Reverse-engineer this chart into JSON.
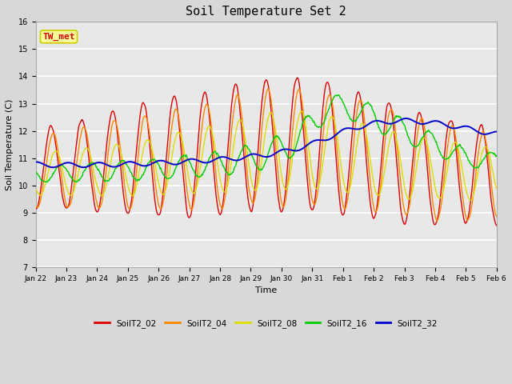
{
  "title": "Soil Temperature Set 2",
  "xlabel": "Time",
  "ylabel": "Soil Temperature (C)",
  "ylim": [
    7.0,
    16.0
  ],
  "yticks": [
    7.0,
    8.0,
    9.0,
    10.0,
    11.0,
    12.0,
    13.0,
    14.0,
    15.0,
    16.0
  ],
  "bg_color": "#e0e0e0",
  "plot_bg_color": "#e8e8e8",
  "grid_color": "#ffffff",
  "annotation_text": "TW_met",
  "annotation_color": "#cc0000",
  "annotation_bg": "#ffff99",
  "annotation_border": "#cccc00",
  "series_colors": {
    "SoilT2_02": "#dd0000",
    "SoilT2_04": "#ff8800",
    "SoilT2_08": "#dddd00",
    "SoilT2_16": "#00cc00",
    "SoilT2_32": "#0000cc"
  },
  "xtick_labels": [
    "Jan 22",
    "Jan 23",
    "Jan 24",
    "Jan 25",
    "Jan 26",
    "Jan 27",
    "Jan 28",
    "Jan 29",
    "Jan 30",
    "Jan 31",
    "Feb 1",
    "Feb 2",
    "Feb 3",
    "Feb 4",
    "Feb 5",
    "Feb 6"
  ],
  "xtick_positions": [
    0,
    1,
    2,
    3,
    4,
    5,
    6,
    7,
    8,
    9,
    10,
    11,
    12,
    13,
    14,
    15
  ]
}
